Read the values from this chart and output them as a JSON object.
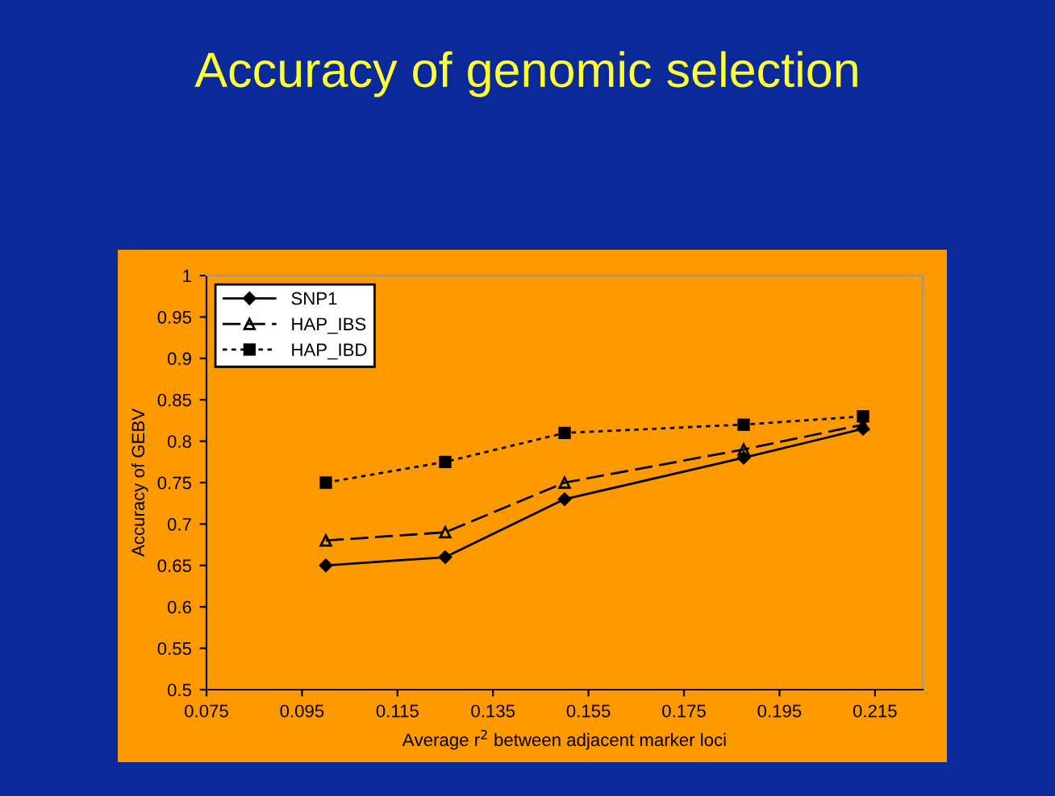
{
  "chart_data": {
    "type": "line",
    "title": "Accuracy of genomic selection",
    "xlabel": "Average r$^{2}$ between adjacent marker loci",
    "ylabel": "Accuracy of GEBV",
    "x": [
      0.1,
      0.125,
      0.15,
      0.1875,
      0.2125
    ],
    "series": [
      {
        "name": "SNP1",
        "color": "#000000",
        "marker": "diamond",
        "line_style": "solid",
        "values": [
          0.65,
          0.66,
          0.73,
          0.78,
          0.815
        ]
      },
      {
        "name": "HAP_IBS",
        "color": "#000000",
        "marker": "triangle",
        "line_style": "dashed",
        "values": [
          0.68,
          0.69,
          0.75,
          0.79,
          0.82
        ]
      },
      {
        "name": "HAP_IBD",
        "color": "#000000",
        "marker": "square",
        "line_style": "dotted",
        "values": [
          0.75,
          0.775,
          0.81,
          0.82,
          0.83
        ]
      }
    ],
    "xlim": [
      0.075,
      0.225
    ],
    "xticks": [
      0.075,
      0.095,
      0.115,
      0.135,
      0.155,
      0.175,
      0.195,
      0.215
    ],
    "ylim": [
      0.5,
      1
    ],
    "yticks": [
      0.5,
      0.55,
      0.6,
      0.65,
      0.7,
      0.75,
      0.8,
      0.85,
      0.9,
      0.95,
      1
    ],
    "grid": false,
    "legend": "top left"
  }
}
